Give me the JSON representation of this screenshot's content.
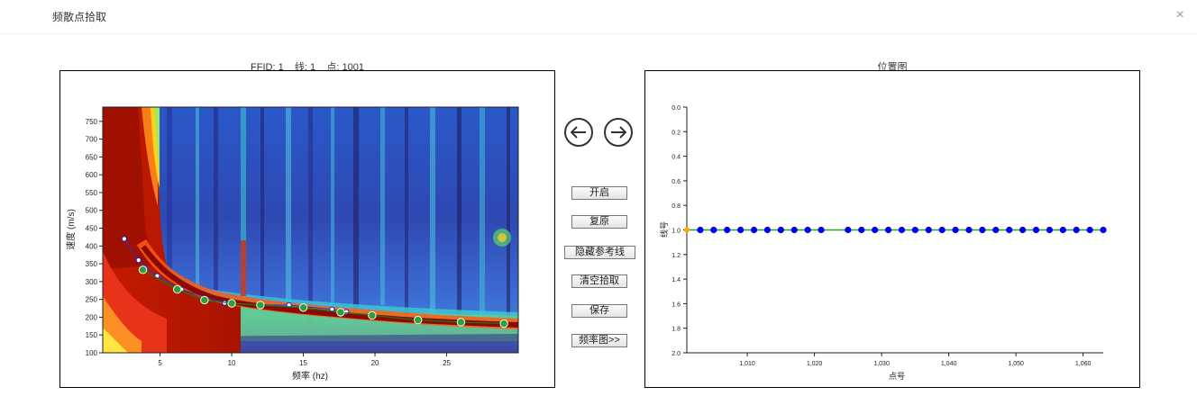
{
  "dialog": {
    "title": "频散点拾取",
    "close_label": "×"
  },
  "left_panel": {
    "title": "FFID: 1    线: 1    点: 1001",
    "chart_data": {
      "type": "heatmap",
      "xlabel": "频率 (hz)",
      "ylabel": "速度 (m/s)",
      "xlim": [
        1,
        30
      ],
      "ylim": [
        100,
        790
      ],
      "x_ticks": [
        5,
        10,
        15,
        20,
        25
      ],
      "y_ticks": [
        100,
        150,
        200,
        250,
        300,
        350,
        400,
        450,
        500,
        550,
        600,
        650,
        700,
        750
      ],
      "reference_points": [
        [
          2.5,
          420
        ],
        [
          3.5,
          360
        ],
        [
          4.8,
          316
        ],
        [
          6.5,
          278
        ],
        [
          9.5,
          240
        ],
        [
          12,
          234
        ],
        [
          14,
          234
        ],
        [
          17,
          222
        ],
        [
          18,
          215
        ]
      ],
      "picked_points": [
        [
          3.8,
          333
        ],
        [
          6.2,
          278
        ],
        [
          8.1,
          248
        ],
        [
          10.0,
          239
        ],
        [
          12.0,
          234
        ],
        [
          15.0,
          227
        ],
        [
          17.6,
          214
        ],
        [
          19.8,
          205
        ],
        [
          23.0,
          192
        ],
        [
          26.0,
          186
        ],
        [
          29.0,
          182
        ]
      ]
    }
  },
  "controls": {
    "prev_icon": "arrow-left-circle-icon",
    "next_icon": "arrow-right-circle-icon",
    "open": "开启",
    "restore": "复原",
    "hide_ref": "隐藏参考线",
    "clear": "清空拾取",
    "save": "保存",
    "freq_chart": "频率图>>"
  },
  "right_panel": {
    "title": "位置图",
    "chart_data": {
      "type": "line",
      "xlabel": "点号",
      "ylabel": "线号",
      "xlim": [
        1001,
        1063
      ],
      "ylim": [
        0.0,
        2.0
      ],
      "y_inverted": true,
      "x_ticks": [
        "1,010",
        "1,020",
        "1,030",
        "1,040",
        "1,050",
        "1,060"
      ],
      "y_ticks": [
        "0.0",
        "0.2",
        "0.4",
        "0.6",
        "0.8",
        "1.0",
        "1.2",
        "1.4",
        "1.6",
        "1.8",
        "2.0"
      ],
      "x": [
        1001,
        1003,
        1005,
        1007,
        1009,
        1011,
        1013,
        1015,
        1017,
        1019,
        1021,
        1025,
        1027,
        1029,
        1031,
        1033,
        1035,
        1037,
        1039,
        1041,
        1043,
        1045,
        1047,
        1049,
        1051,
        1053,
        1055,
        1057,
        1059,
        1061,
        1063
      ],
      "y": 1.0,
      "current_point": 1001,
      "colors": {
        "point": "#0000ee",
        "current": "#ffa500",
        "line": "#2a9d2a"
      }
    }
  }
}
